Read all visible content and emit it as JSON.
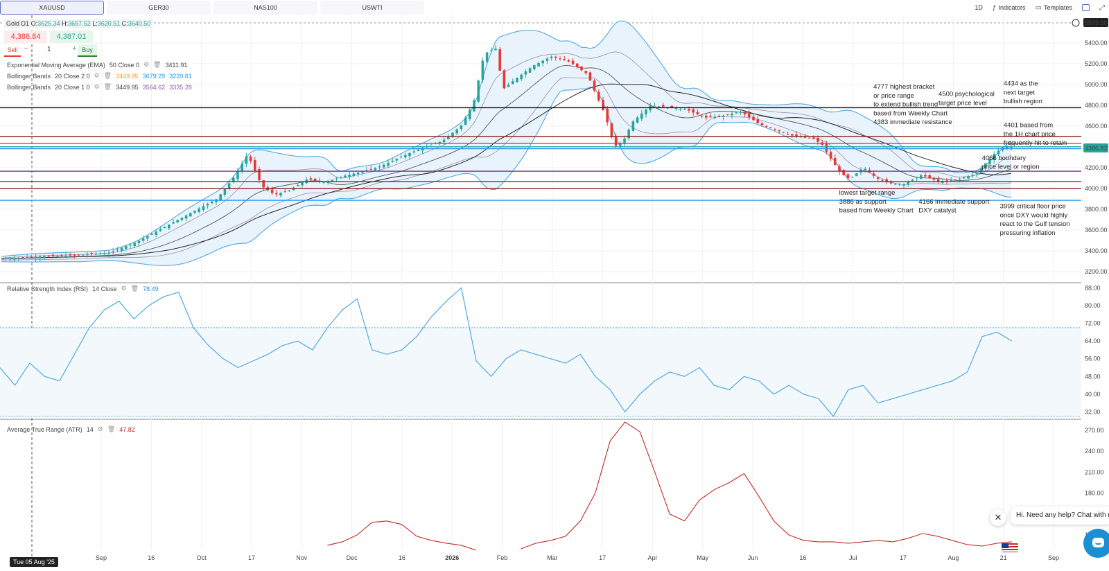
{
  "tabs": [
    "XAUUSD",
    "GER30",
    "NAS100",
    "USWTI"
  ],
  "toolbar": {
    "timeframe": "1D",
    "indicators_label": "Indicators",
    "templates_label": "Templates"
  },
  "legend": {
    "symbol": "Gold",
    "timeframe": "D1",
    "open_label": "O:",
    "open": "3625.34",
    "high_label": "H:",
    "high": "3657.52",
    "low_label": "L:",
    "low": "3620.51",
    "close_label": "C:",
    "close": "3640.50"
  },
  "trade": {
    "sell_price": "4,386.84",
    "buy_price": "4,387.01",
    "sell_label": "Sell",
    "buy_label": "Buy",
    "minus": "−",
    "plus": "+",
    "quantity": "1"
  },
  "indicators": [
    {
      "name": "Exponential Moving Average (EMA)",
      "params": "50  Close  0",
      "values": [
        "3411.91"
      ],
      "value_colors": [
        "#444444"
      ]
    },
    {
      "name": "Bollinger Bands",
      "params": "20  Close  2  0",
      "values": [
        "3449.95",
        "3679.29",
        "3220.61"
      ],
      "value_colors": [
        "#f29b1d",
        "#2196f3",
        "#2196f3"
      ]
    },
    {
      "name": "Bollinger Bands",
      "params": "20  Close  1  0",
      "values": [
        "3449.95",
        "3564.62",
        "3335.28"
      ],
      "value_colors": [
        "#333333",
        "#8e5aa5",
        "#8e5aa5"
      ]
    }
  ],
  "rsi_legend": {
    "name": "Relative Strength Index (RSI)",
    "params": "14  Close",
    "value": "78.49"
  },
  "atr_legend": {
    "name": "Average True Range (ATR)",
    "params": "14",
    "value": "47.82"
  },
  "price_labels": {
    "top": "5579.30",
    "current": "4386.82"
  },
  "date_badge": "Tue 05 Aug '25",
  "chat": {
    "message": "Hi. Need any help? Chat with me",
    "close": "✕"
  },
  "colors": {
    "up": "#26a69a",
    "down": "#e53935",
    "band_outer": "#4ea8e0",
    "band_fill": "#e8f3fc",
    "rsi_line": "#4ea8e0",
    "atr_line": "#c62828"
  },
  "chart_data": [
    {
      "type": "candlestick",
      "title": "Gold D1",
      "x_ticks": [
        "Sep",
        "16",
        "Oct",
        "17",
        "Nov",
        "Dec",
        "16",
        "2026",
        "Feb",
        "Mar",
        "17",
        "Apr",
        "May",
        "Jun",
        "16",
        "Jul",
        "17",
        "Aug",
        "21",
        "Sep"
      ],
      "y_ticks": [
        5400,
        5200,
        5000,
        4800,
        4600,
        4400,
        4200,
        4000,
        3800,
        3600,
        3400,
        3200
      ],
      "ylim": [
        3100,
        5600
      ],
      "close_path": [
        [
          0,
          3320
        ],
        [
          15,
          3340
        ],
        [
          30,
          3350
        ],
        [
          45,
          3360
        ],
        [
          60,
          3380
        ],
        [
          75,
          3480
        ],
        [
          90,
          3620
        ],
        [
          105,
          3760
        ],
        [
          120,
          3900
        ],
        [
          130,
          4120
        ],
        [
          137,
          4330
        ],
        [
          145,
          4020
        ],
        [
          152,
          3940
        ],
        [
          160,
          3980
        ],
        [
          170,
          4090
        ],
        [
          180,
          4060
        ],
        [
          190,
          4120
        ],
        [
          200,
          4160
        ],
        [
          210,
          4210
        ],
        [
          220,
          4290
        ],
        [
          228,
          4350
        ],
        [
          235,
          4400
        ],
        [
          245,
          4460
        ],
        [
          255,
          4600
        ],
        [
          262,
          4820
        ],
        [
          268,
          5300
        ],
        [
          275,
          5350
        ],
        [
          278,
          4950
        ],
        [
          285,
          5050
        ],
        [
          295,
          5180
        ],
        [
          305,
          5270
        ],
        [
          315,
          5220
        ],
        [
          325,
          5100
        ],
        [
          335,
          4700
        ],
        [
          340,
          4400
        ],
        [
          345,
          4460
        ],
        [
          350,
          4640
        ],
        [
          360,
          4800
        ],
        [
          370,
          4780
        ],
        [
          380,
          4760
        ],
        [
          390,
          4680
        ],
        [
          400,
          4700
        ],
        [
          410,
          4740
        ],
        [
          420,
          4620
        ],
        [
          430,
          4560
        ],
        [
          440,
          4500
        ],
        [
          450,
          4480
        ],
        [
          455,
          4420
        ],
        [
          460,
          4280
        ],
        [
          465,
          4150
        ],
        [
          470,
          4090
        ],
        [
          478,
          4200
        ],
        [
          485,
          4100
        ],
        [
          492,
          4050
        ],
        [
          500,
          4040
        ],
        [
          510,
          4130
        ],
        [
          520,
          4060
        ],
        [
          530,
          4090
        ],
        [
          540,
          4140
        ],
        [
          550,
          4330
        ],
        [
          556,
          4410
        ],
        [
          560,
          4390
        ]
      ],
      "annotations": [
        {
          "text": "4777 highest bracket",
          "at": [
            445,
            4960
          ]
        },
        {
          "text": "or price range",
          "at": [
            445,
            4875
          ]
        },
        {
          "text": "to extend bullish trend",
          "at": [
            445,
            4790
          ]
        },
        {
          "text": "based from Weekly Chart",
          "at": [
            445,
            4705
          ]
        },
        {
          "text": "4383 immediate resistance",
          "at": [
            445,
            4620
          ]
        },
        {
          "text": "4500 psychological",
          "at": [
            481,
            4890
          ]
        },
        {
          "text": "target price level",
          "at": [
            481,
            4805
          ]
        },
        {
          "text": "4434 as the",
          "at": [
            517,
            4990
          ]
        },
        {
          "text": "next target",
          "at": [
            517,
            4905
          ]
        },
        {
          "text": "bullish region",
          "at": [
            517,
            4820
          ]
        },
        {
          "text": "4401 based from",
          "at": [
            517,
            4590
          ]
        },
        {
          "text": "the 1H chart price",
          "at": [
            517,
            4505
          ]
        },
        {
          "text": "frequently hit to retain",
          "at": [
            517,
            4420
          ]
        },
        {
          "text": "4066 boundary",
          "at": [
            505,
            4275
          ]
        },
        {
          "text": "price level or region",
          "at": [
            505,
            4190
          ]
        },
        {
          "text": "lowest target range",
          "at": [
            426,
            3940
          ]
        },
        {
          "text": "3886 as support",
          "at": [
            426,
            3855
          ]
        },
        {
          "text": "based from Weekly Chart",
          "at": [
            426,
            3770
          ]
        },
        {
          "text": "4166 immediate support",
          "at": [
            470,
            3855
          ]
        },
        {
          "text": "DXY catalyst",
          "at": [
            470,
            3770
          ]
        },
        {
          "text": "3999 critical floor price",
          "at": [
            515,
            3810
          ]
        },
        {
          "text": "once DXY would highly",
          "at": [
            515,
            3725
          ]
        },
        {
          "text": "react to the Gulf tension",
          "at": [
            515,
            3640
          ]
        },
        {
          "text": "pressuring inflation",
          "at": [
            515,
            3555
          ]
        }
      ],
      "horizontal_levels": [
        {
          "value": 4777,
          "color": "#111111"
        },
        {
          "value": 4500,
          "color": "#8b2e1e"
        },
        {
          "value": 4434,
          "color": "#e53935"
        },
        {
          "value": 4401,
          "color": "#26a69a"
        },
        {
          "value": 4383,
          "color": "#2196f3"
        },
        {
          "value": 4166,
          "color": "#7b2d8e"
        },
        {
          "value": 4066,
          "color": "#444444"
        },
        {
          "value": 3999,
          "color": "#8b1e1e"
        },
        {
          "value": 3886,
          "color": "#2196f3"
        }
      ]
    },
    {
      "type": "line",
      "title": "Relative Strength Index (RSI)",
      "y_ticks": [
        88,
        80,
        72,
        64,
        56,
        48,
        40,
        32
      ],
      "ylim": [
        29,
        90
      ],
      "levels": [
        70,
        30
      ],
      "values": [
        52,
        44,
        54,
        48,
        46,
        58,
        70,
        78,
        82,
        74,
        80,
        84,
        86,
        70,
        62,
        56,
        52,
        55,
        58,
        62,
        64,
        60,
        70,
        78,
        83,
        60,
        58,
        60,
        66,
        75,
        82,
        88,
        55,
        48,
        56,
        60,
        58,
        56,
        54,
        58,
        48,
        42,
        32,
        40,
        46,
        50,
        48,
        52,
        44,
        42,
        48,
        46,
        40,
        44,
        40,
        38,
        30,
        42,
        44,
        36,
        38,
        40,
        42,
        44,
        46,
        50,
        66,
        68,
        64
      ]
    },
    {
      "type": "line",
      "title": "Average True Range (ATR)",
      "y_ticks": [
        270,
        240,
        210,
        180,
        120
      ],
      "ylim": [
        100,
        285
      ],
      "values": [
        null,
        null,
        null,
        null,
        null,
        null,
        null,
        null,
        null,
        null,
        null,
        null,
        null,
        null,
        null,
        null,
        null,
        null,
        null,
        null,
        null,
        null,
        105,
        110,
        120,
        138,
        140,
        135,
        118,
        112,
        108,
        105,
        98,
        null,
        null,
        100,
        108,
        112,
        118,
        140,
        180,
        255,
        282,
        268,
        210,
        150,
        140,
        170,
        185,
        195,
        208,
        175,
        140,
        120,
        112,
        110,
        110,
        108,
        110,
        112,
        110,
        115,
        122,
        118,
        112,
        106,
        104,
        108,
        110
      ]
    }
  ]
}
